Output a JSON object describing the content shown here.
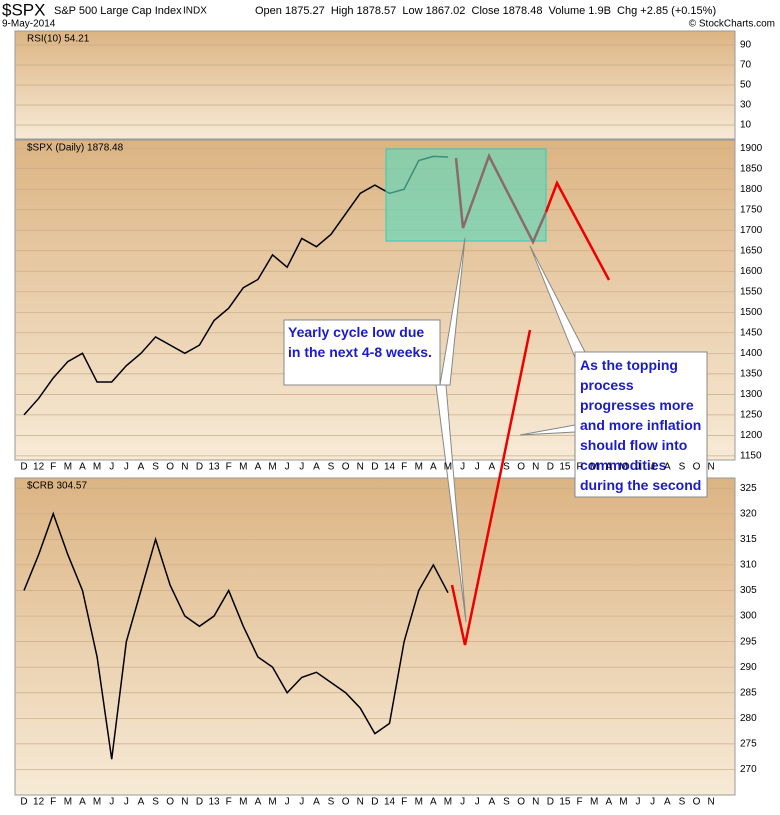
{
  "header": {
    "symbol": "$SPX",
    "name": "S&P 500 Large Cap Index",
    "exchange": "INDX",
    "date": "9-May-2014",
    "quote": "Open 1875.27  High 1878.57  Low 1867.02  Close 1878.48  Volume 1.9B  Chg +2.85 (+0.15%)",
    "credit": "© StockCharts.com"
  },
  "annotations": [
    "Yearly cycle low due in the next 4-8 weeks.",
    "As the topping process progresses more and more inflation should flow into commodities during the second half of the year."
  ],
  "chart_data": [
    {
      "type": "indicator",
      "label": "RSI(10) 54.21",
      "ylim": [
        -4,
        104
      ],
      "yticks": [
        10,
        30,
        50,
        70,
        90
      ],
      "grid": true
    },
    {
      "type": "line",
      "label": "$SPX (Daily) 1878.48",
      "color": "#000000",
      "categories": [
        "D",
        "12",
        "F",
        "M",
        "A",
        "M",
        "J",
        "J",
        "A",
        "S",
        "O",
        "N",
        "D",
        "13",
        "F",
        "M",
        "A",
        "M",
        "J",
        "J",
        "A",
        "S",
        "O",
        "N",
        "D",
        "14",
        "F",
        "M",
        "A",
        "M",
        "J",
        "J",
        "A",
        "S",
        "O",
        "N",
        "D",
        "15",
        "F",
        "M",
        "A",
        "M",
        "J",
        "J",
        "A",
        "S",
        "O",
        "N"
      ],
      "values": [
        1250,
        1290,
        1340,
        1380,
        1400,
        1330,
        1330,
        1370,
        1400,
        1440,
        1420,
        1400,
        1420,
        1480,
        1510,
        1560,
        1580,
        1640,
        1610,
        1680,
        1660,
        1690,
        1740,
        1790,
        1810,
        1790,
        1800,
        1870,
        1880,
        1878.48,
        null,
        null,
        null,
        null,
        null,
        null,
        null,
        null,
        null,
        null,
        null,
        null,
        null,
        null,
        null,
        null,
        null,
        null
      ],
      "ylim": [
        1140,
        1920
      ],
      "yticks": [
        1150,
        1200,
        1250,
        1300,
        1350,
        1400,
        1450,
        1500,
        1550,
        1600,
        1650,
        1700,
        1750,
        1800,
        1850,
        1900
      ],
      "grid": true
    },
    {
      "type": "line",
      "label": "$CRB 304.57",
      "color": "#000000",
      "categories": [
        "D",
        "12",
        "F",
        "M",
        "A",
        "M",
        "J",
        "J",
        "A",
        "S",
        "O",
        "N",
        "D",
        "13",
        "F",
        "M",
        "A",
        "M",
        "J",
        "J",
        "A",
        "S",
        "O",
        "N",
        "D",
        "14",
        "F",
        "M",
        "A",
        "M",
        "J",
        "J",
        "A",
        "S",
        "O",
        "N",
        "D",
        "15",
        "F",
        "M",
        "A",
        "M",
        "J",
        "J",
        "A",
        "S",
        "O",
        "N"
      ],
      "values": [
        305,
        312,
        320,
        312,
        305,
        292,
        272,
        295,
        305,
        315,
        306,
        300,
        298,
        300,
        305,
        298,
        292,
        290,
        285,
        288,
        289,
        287,
        285,
        282,
        277,
        279,
        295,
        305,
        310,
        304.57,
        null,
        null,
        null,
        null,
        null,
        null,
        null,
        null,
        null,
        null,
        null,
        null,
        null,
        null,
        null,
        null,
        null,
        null
      ],
      "ylim": [
        265,
        327
      ],
      "yticks": [
        270,
        275,
        280,
        285,
        290,
        295,
        300,
        305,
        310,
        315,
        320,
        325
      ],
      "grid": true
    }
  ]
}
